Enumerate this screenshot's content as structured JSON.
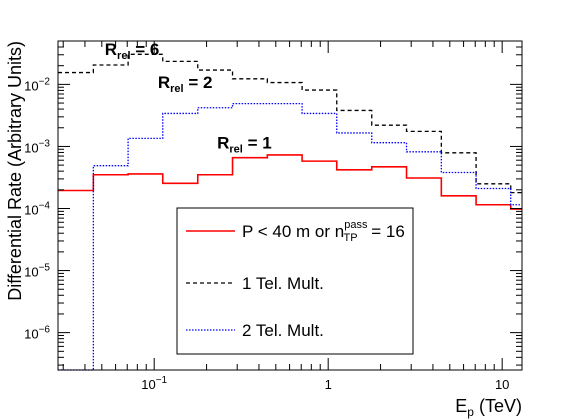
{
  "chart_data": {
    "type": "line",
    "step": true,
    "xscale": "log",
    "yscale": "log",
    "xlim": [
      0.028,
      13
    ],
    "ylim": [
      2.5e-07,
      0.05
    ],
    "xlabel": {
      "main": "E",
      "sub": "p",
      "rest": " (TeV)"
    },
    "ylabel": "Differential Rate (Arbitrary Units)",
    "x_ticks": [
      {
        "value": 0.1,
        "base": "10",
        "exp": "−1"
      },
      {
        "value": 1,
        "label": "1"
      },
      {
        "value": 10,
        "label": "10"
      }
    ],
    "y_ticks": [
      {
        "value": 1e-06,
        "base": "10",
        "exp": "−6"
      },
      {
        "value": 1e-05,
        "base": "10",
        "exp": "−5"
      },
      {
        "value": 0.0001,
        "base": "10",
        "exp": "−4"
      },
      {
        "value": 0.001,
        "base": "10",
        "exp": "−3"
      },
      {
        "value": 0.01,
        "base": "10",
        "exp": "−2"
      }
    ],
    "bin_edges": [
      0.028,
      0.0447,
      0.0708,
      0.112,
      0.178,
      0.282,
      0.447,
      0.708,
      1.12,
      1.78,
      2.82,
      4.47,
      7.08,
      11.2,
      13
    ],
    "series": [
      {
        "name": "P < 40 m or n_TP^pass = 16",
        "color": "#ff0000",
        "dash": "solid",
        "values": [
          0.000195,
          0.00035,
          0.00036,
          0.000255,
          0.00035,
          0.00066,
          0.00073,
          0.00058,
          0.00042,
          0.00047,
          0.00031,
          0.00016,
          0.000115,
          9.8e-05
        ]
      },
      {
        "name": "1 Tel. Mult.",
        "color": "#000000",
        "dash": "dashed",
        "values": [
          0.0155,
          0.0205,
          0.0305,
          0.0235,
          0.017,
          0.0123,
          0.0107,
          0.0081,
          0.0038,
          0.0022,
          0.00175,
          0.00079,
          0.00025,
          0.00018
        ]
      },
      {
        "name": "2 Tel. Mult.",
        "color": "#0000ff",
        "dash": "dotted",
        "values": [
          1e-09,
          0.00049,
          0.00135,
          0.0034,
          0.0042,
          0.0049,
          0.0049,
          0.0034,
          0.00165,
          0.00115,
          0.00082,
          0.00038,
          0.00021,
          0.000115
        ]
      }
    ],
    "annotations": [
      {
        "main": "R",
        "sub": "rel",
        "rest": " = 6",
        "x": 0.052,
        "y": 0.03
      },
      {
        "main": "R",
        "sub": "rel",
        "rest": " = 2",
        "x": 0.105,
        "y": 0.0088
      },
      {
        "main": "R",
        "sub": "rel",
        "rest": " = 1",
        "x": 0.23,
        "y": 0.00093
      }
    ],
    "legend": {
      "placement": "bottom-center",
      "entries": [
        {
          "series": 0,
          "text": "P < 40 m or n",
          "sup": "pass",
          "sub": "TP",
          "rest": " = 16"
        },
        {
          "series": 1,
          "text": "1 Tel. Mult."
        },
        {
          "series": 2,
          "text": "2 Tel. Mult."
        }
      ]
    },
    "grid": false
  }
}
